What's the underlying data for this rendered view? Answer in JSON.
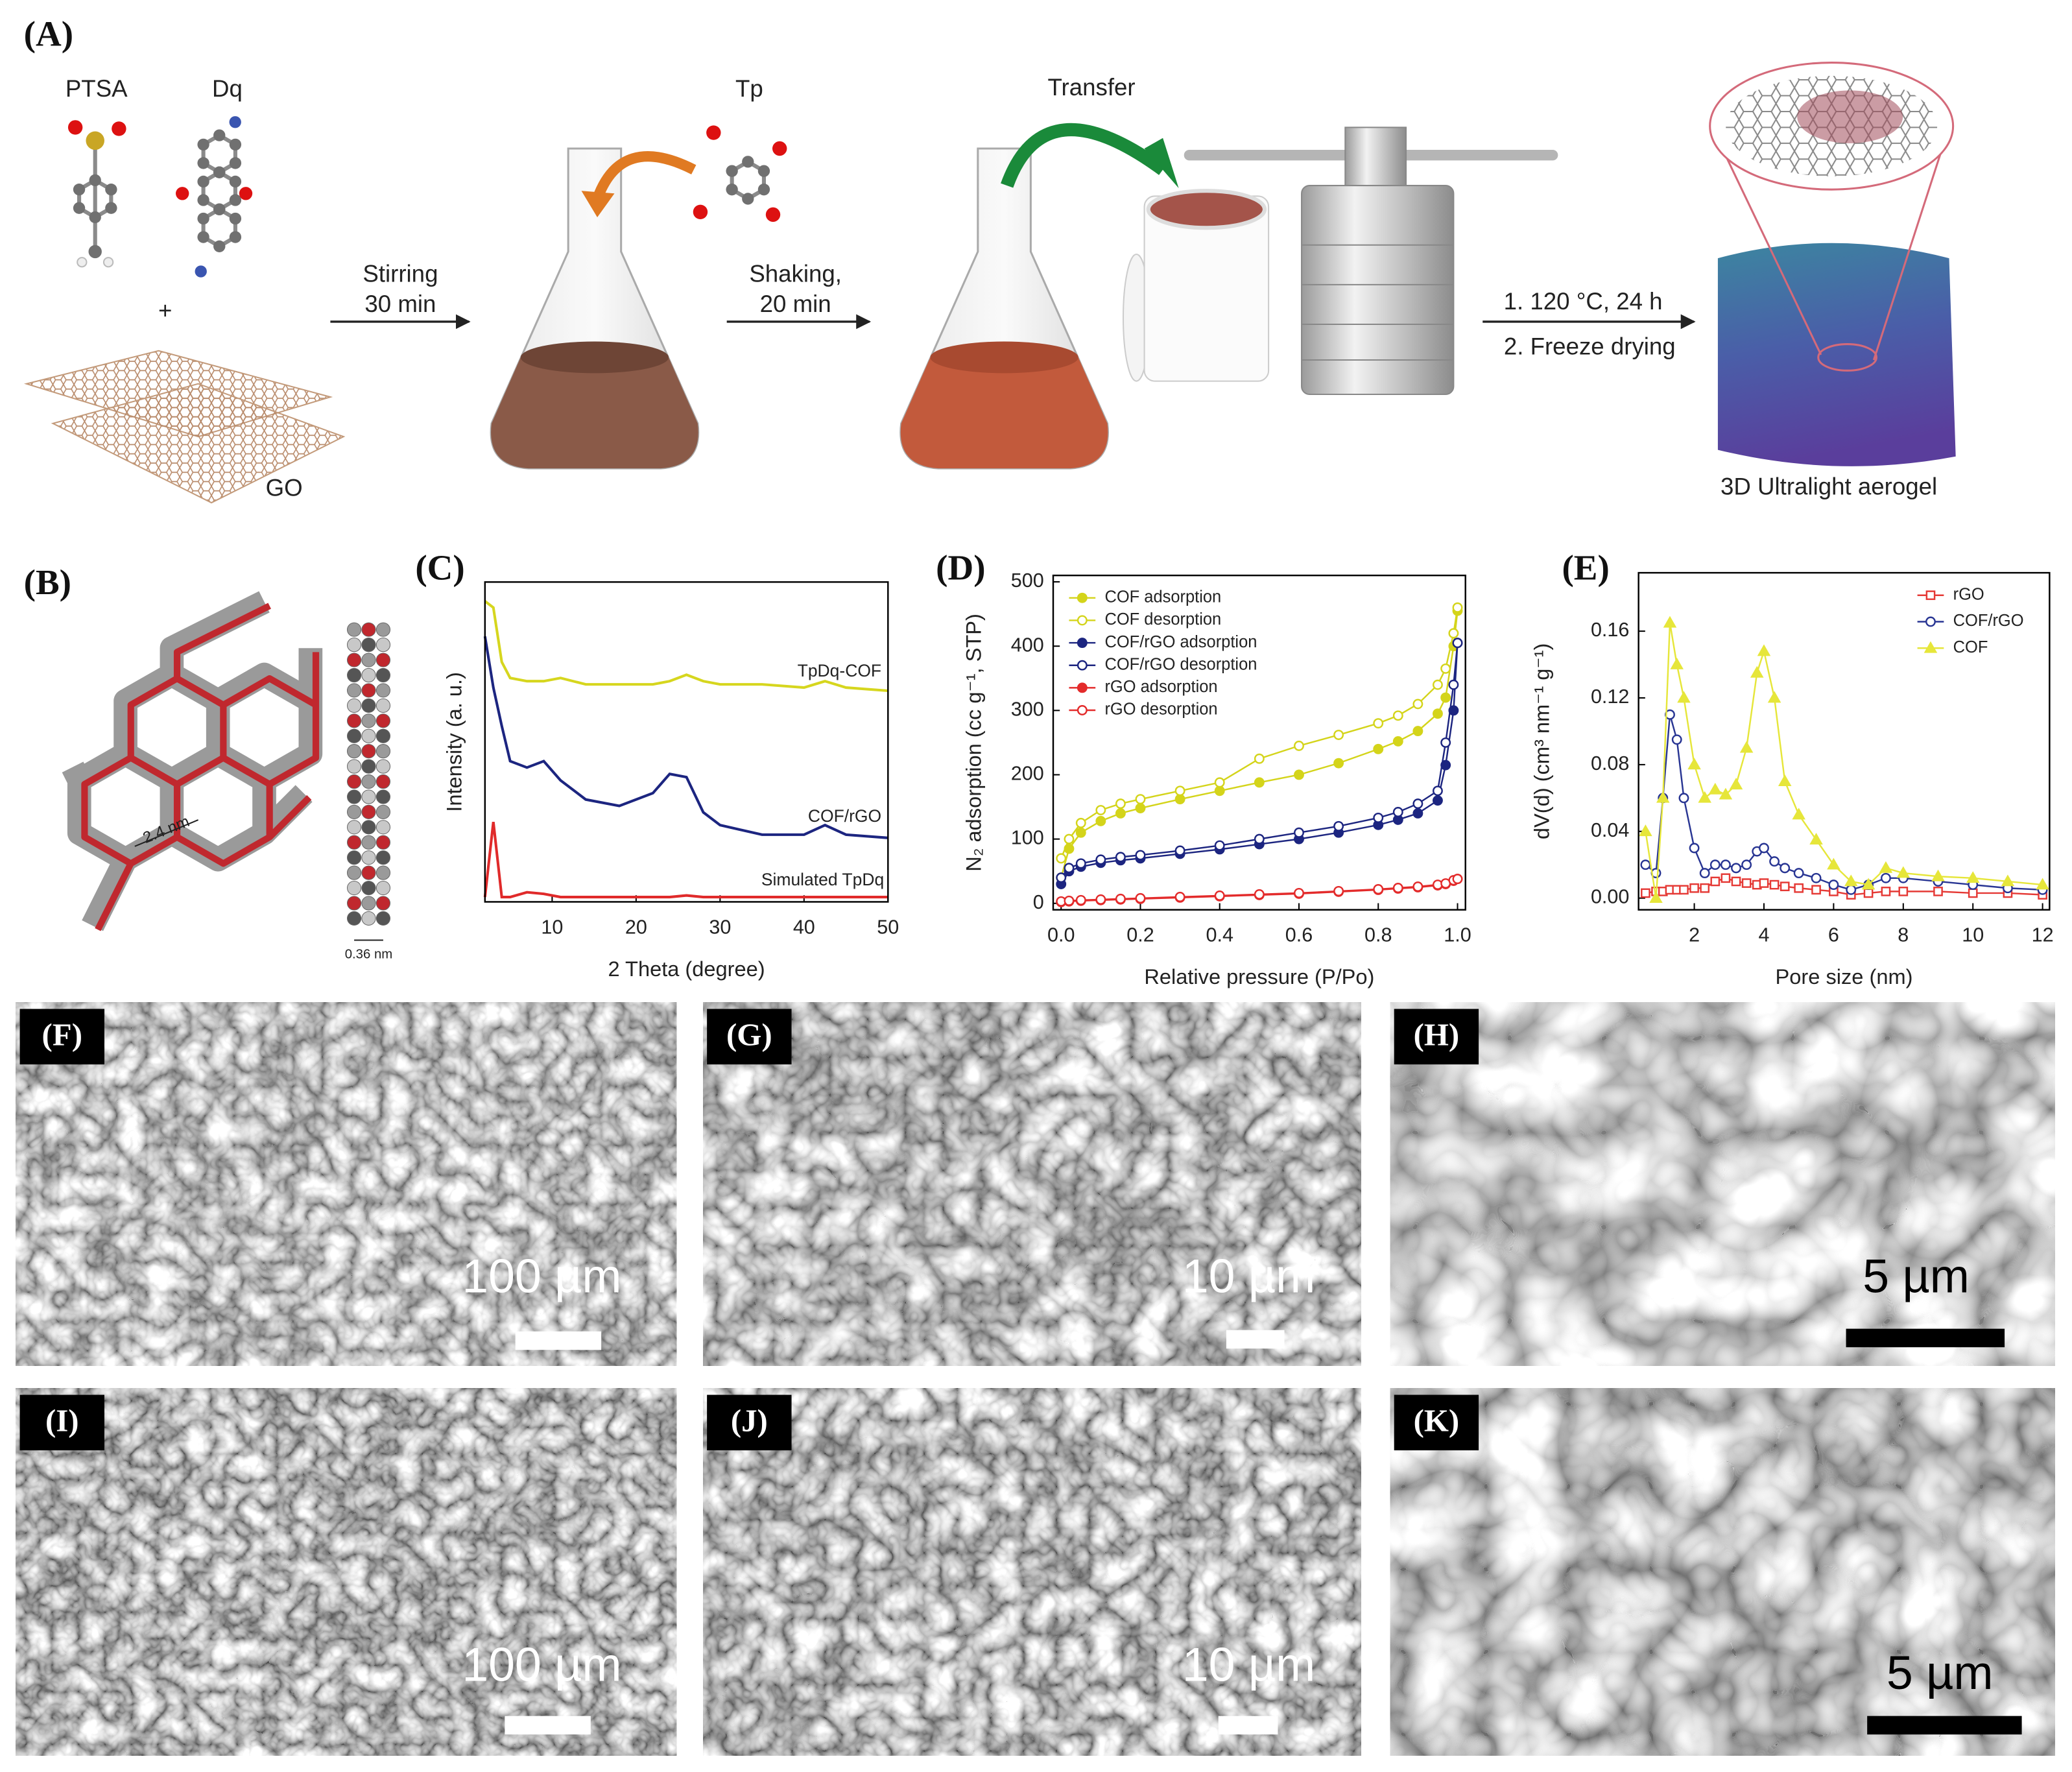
{
  "schematic": {
    "panel_label": "(A)",
    "ptsa": "PTSA",
    "dq": "Dq",
    "tp": "Tp",
    "plus": "+",
    "go": "GO",
    "step1": [
      "Stirring",
      "30 min"
    ],
    "step2": [
      "Shaking,",
      "20 min"
    ],
    "transfer": "Transfer",
    "step3": [
      "1. 120 °C, 24 h",
      "2. Freeze drying"
    ],
    "product": "3D Ultralight aerogel"
  },
  "structure": {
    "panel_label": "(B)",
    "pore_size": "2.4 nm",
    "layer_spacing": "0.36 nm"
  },
  "chart_data": [
    {
      "type": "line",
      "panel_label": "(C)",
      "x_label": "2 Theta (degree)",
      "y_label": "Intensity (a. u.)",
      "x": [
        2,
        3,
        4,
        5,
        7,
        9,
        11,
        14,
        18,
        22,
        24,
        26,
        28,
        30,
        35,
        40,
        42.5,
        45,
        50
      ],
      "xlim": [
        2,
        50
      ],
      "xticks": [
        10,
        20,
        30,
        40,
        50
      ],
      "ylim": [
        0,
        100
      ],
      "series": [
        {
          "name": "TpDq-COF",
          "color": "#d6d61e",
          "values": [
            94,
            92,
            75,
            70,
            69,
            69,
            70,
            68,
            68,
            68,
            69,
            71,
            69,
            68,
            68,
            67,
            69,
            67,
            66
          ]
        },
        {
          "name": "COF/rGO",
          "color": "#1c2580",
          "values": [
            83,
            67,
            55,
            44,
            42,
            44,
            38,
            32,
            30,
            34,
            40,
            39,
            28,
            24,
            21,
            21,
            24,
            21,
            20
          ]
        },
        {
          "name": "Simulated TpDq",
          "color": "#e02a2a",
          "values": [
            1.5,
            25,
            1.5,
            1.5,
            3,
            2.5,
            1.5,
            1.5,
            1.5,
            1.5,
            1.5,
            2,
            1.5,
            1.5,
            1.5,
            1.5,
            1.5,
            1.5,
            1.5
          ]
        }
      ]
    },
    {
      "type": "line",
      "panel_label": "(D)",
      "x_label": "Relative pressure (P/Po)",
      "y_label": "N₂ adsorption (cc g⁻¹, STP)",
      "x": [
        0,
        0.02,
        0.05,
        0.1,
        0.15,
        0.2,
        0.3,
        0.4,
        0.5,
        0.6,
        0.7,
        0.8,
        0.85,
        0.9,
        0.95,
        0.97,
        0.99,
        1.0
      ],
      "xlim": [
        -0.02,
        1.02
      ],
      "xticks": [
        {
          "value": 0,
          "label": "0.0"
        },
        0.2,
        0.4,
        0.6,
        0.8,
        {
          "value": 1,
          "label": "1.0"
        }
      ],
      "ylim": [
        -10,
        510
      ],
      "yticks": [
        0,
        100,
        200,
        300,
        400,
        500
      ],
      "legend": "upper left",
      "series": [
        {
          "name": "COF adsorption",
          "color": "#d4d41a",
          "marker": "circle",
          "filled": true,
          "values": [
            40,
            85,
            110,
            128,
            140,
            148,
            162,
            175,
            188,
            200,
            218,
            240,
            252,
            268,
            295,
            320,
            400,
            455
          ]
        },
        {
          "name": "COF desorption",
          "color": "#d4d41a",
          "marker": "circle",
          "filled": false,
          "values": [
            70,
            100,
            125,
            145,
            155,
            162,
            175,
            188,
            225,
            245,
            262,
            280,
            292,
            310,
            340,
            365,
            420,
            460
          ]
        },
        {
          "name": "COF/rGO adsorption",
          "color": "#1c2580",
          "marker": "circle",
          "filled": true,
          "values": [
            30,
            50,
            57,
            63,
            67,
            70,
            77,
            84,
            92,
            100,
            110,
            122,
            130,
            140,
            160,
            215,
            300,
            405
          ]
        },
        {
          "name": "COF/rGO desorption",
          "color": "#1c2580",
          "marker": "circle",
          "filled": false,
          "values": [
            40,
            55,
            62,
            68,
            72,
            75,
            82,
            90,
            100,
            110,
            120,
            133,
            142,
            155,
            175,
            250,
            340,
            405
          ]
        },
        {
          "name": "rGO adsorption",
          "color": "#e32b2b",
          "marker": "circle",
          "filled": true,
          "values": [
            2,
            3,
            4,
            5,
            6,
            7,
            9,
            11,
            13,
            15,
            18,
            21,
            23,
            25,
            28,
            30,
            35,
            38
          ]
        },
        {
          "name": "rGO desorption",
          "color": "#e32b2b",
          "marker": "circle",
          "filled": false,
          "values": [
            3,
            4,
            5,
            6,
            7,
            8,
            10,
            12,
            14,
            16,
            19,
            22,
            24,
            26,
            29,
            31,
            36,
            38
          ]
        }
      ]
    },
    {
      "type": "line",
      "panel_label": "(E)",
      "x_label": "Pore size (nm)",
      "y_label": "dV(d) (cm³ nm⁻¹ g⁻¹)",
      "x": [
        0.6,
        0.9,
        1.1,
        1.3,
        1.5,
        1.7,
        2.0,
        2.3,
        2.6,
        2.9,
        3.2,
        3.5,
        3.8,
        4.0,
        4.3,
        4.6,
        5.0,
        5.5,
        6.0,
        6.5,
        7.0,
        7.5,
        8.0,
        9.0,
        10.0,
        11.0,
        12.0
      ],
      "xlim": [
        0.4,
        12.2
      ],
      "xticks": [
        2,
        4,
        6,
        8,
        10,
        12
      ],
      "ylim": [
        -0.007,
        0.195
      ],
      "yticks": [
        {
          "value": 0,
          "label": "0.00"
        },
        0.04,
        0.08,
        0.12,
        0.16
      ],
      "legend": "upper right",
      "series": [
        {
          "name": "rGO",
          "color": "#e53935",
          "marker": "square",
          "filled": false,
          "values": [
            0.003,
            0.004,
            0.004,
            0.005,
            0.005,
            0.005,
            0.006,
            0.006,
            0.01,
            0.012,
            0.01,
            0.009,
            0.008,
            0.009,
            0.008,
            0.007,
            0.006,
            0.005,
            0.004,
            0.002,
            0.003,
            0.004,
            0.004,
            0.004,
            0.003,
            0.003,
            0.002
          ]
        },
        {
          "name": "COF/rGO",
          "color": "#283593",
          "marker": "circle",
          "filled": false,
          "values": [
            0.02,
            0.015,
            0.06,
            0.11,
            0.095,
            0.06,
            0.03,
            0.015,
            0.02,
            0.02,
            0.018,
            0.02,
            0.028,
            0.03,
            0.022,
            0.018,
            0.015,
            0.012,
            0.008,
            0.005,
            0.008,
            0.012,
            0.012,
            0.01,
            0.008,
            0.006,
            0.005
          ]
        },
        {
          "name": "COF",
          "color": "#e6e63a",
          "marker": "triangle",
          "filled": true,
          "values": [
            0.04,
            0.0,
            0.06,
            0.165,
            0.14,
            0.12,
            0.08,
            0.06,
            0.065,
            0.062,
            0.068,
            0.09,
            0.135,
            0.148,
            0.12,
            0.07,
            0.05,
            0.035,
            0.02,
            0.01,
            0.008,
            0.018,
            0.015,
            0.013,
            0.012,
            0.01,
            0.008
          ]
        }
      ]
    }
  ],
  "sem_panels": [
    {
      "label": "(F)",
      "scale_bar": "100 µm"
    },
    {
      "label": "(G)",
      "scale_bar": "10 µm"
    },
    {
      "label": "(H)",
      "scale_bar": "5 µm"
    },
    {
      "label": "(I)",
      "scale_bar": "100 µm"
    },
    {
      "label": "(J)",
      "scale_bar": "10 µm"
    },
    {
      "label": "(K)",
      "scale_bar": "5 µm"
    }
  ]
}
